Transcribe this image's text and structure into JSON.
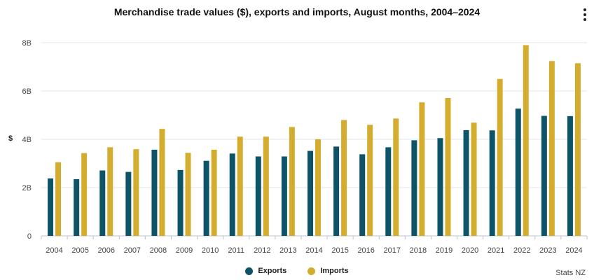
{
  "title": "Merchandise trade values ($), exports and imports, August months, 2004–2024",
  "menu_icon": "more-vertical-icon",
  "credit": "Stats NZ",
  "chart_data": {
    "type": "bar",
    "title": "Merchandise trade values ($), exports and imports, August months, 2004–2024",
    "xlabel": "",
    "ylabel": "$",
    "ylim": [
      0,
      8
    ],
    "yticks": [
      0,
      2,
      4,
      6,
      8
    ],
    "ytick_labels": [
      "0",
      "2B",
      "4B",
      "6B",
      "8B"
    ],
    "grid": true,
    "legend_position": "bottom-center",
    "categories": [
      "2004",
      "2005",
      "2006",
      "2007",
      "2008",
      "2009",
      "2010",
      "2011",
      "2012",
      "2013",
      "2014",
      "2015",
      "2016",
      "2017",
      "2018",
      "2019",
      "2020",
      "2021",
      "2022",
      "2023",
      "2024"
    ],
    "series": [
      {
        "name": "Exports",
        "color": "#0d5468",
        "values": [
          2.38,
          2.35,
          2.71,
          2.65,
          3.57,
          2.73,
          3.11,
          3.41,
          3.29,
          3.29,
          3.52,
          3.7,
          3.38,
          3.67,
          3.96,
          4.05,
          4.38,
          4.37,
          5.27,
          4.97,
          4.96
        ]
      },
      {
        "name": "Imports",
        "color": "#d4ad2f",
        "values": [
          3.05,
          3.43,
          3.67,
          3.59,
          4.43,
          3.44,
          3.57,
          4.11,
          4.11,
          4.51,
          4.0,
          4.8,
          4.6,
          4.86,
          5.53,
          5.71,
          4.69,
          6.5,
          7.9,
          7.24,
          7.15
        ]
      }
    ]
  }
}
